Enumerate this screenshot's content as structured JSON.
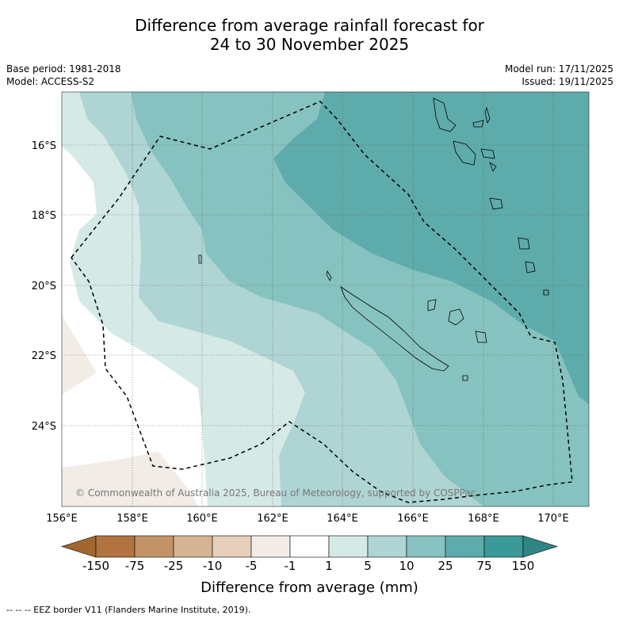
{
  "title_line1": "Difference from average rainfall forecast for",
  "title_line2": "24 to 30 November 2025",
  "base_period": "Base period: 1981-2018",
  "model": "Model: ACCESS-S2",
  "model_run": "Model run: 17/11/2025",
  "issued": "Issued: 19/11/2025",
  "copyright": "© Commonwealth of Australia 2025, Bureau of Meteorology, supported by COSPPac",
  "lat_labels": [
    "16°S",
    "18°S",
    "20°S",
    "22°S",
    "24°S"
  ],
  "lon_labels": [
    "156°E",
    "158°E",
    "160°E",
    "162°E",
    "164°E",
    "166°E",
    "168°E",
    "170°E"
  ],
  "colorbar": {
    "title": "Difference from average (mm)",
    "ticks": [
      "-150",
      "-75",
      "-25",
      "-10",
      "-5",
      "-1",
      "1",
      "5",
      "10",
      "25",
      "75",
      "150"
    ],
    "colors": [
      "#a0672f",
      "#b17440",
      "#c29366",
      "#d5b393",
      "#e6cfbb",
      "#f2ece6",
      "#ffffff",
      "#d5e9e7",
      "#aed4d3",
      "#86c2c0",
      "#5eabab",
      "#3a9a97",
      "#2f8584"
    ]
  },
  "footnote": "--  --  -- EEZ border V11 (Flanders Marine Institute, 2019)."
}
